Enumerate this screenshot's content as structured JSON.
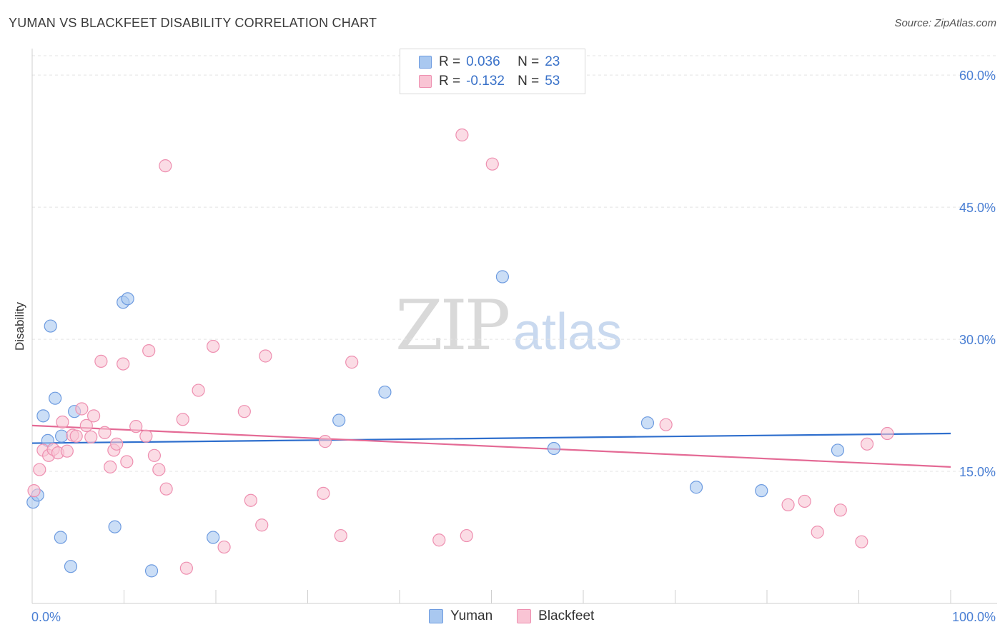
{
  "header": {
    "title": "YUMAN VS BLACKFEET DISABILITY CORRELATION CHART",
    "source": "Source: ZipAtlas.com"
  },
  "watermark": {
    "zip": "ZIP",
    "atlas": "atlas"
  },
  "legend": {
    "rows": [
      {
        "r_label": "R =",
        "r_value": "0.036",
        "n_label": "N =",
        "n_value": "23",
        "color": "#a9c8f0",
        "border": "#6d9be0"
      },
      {
        "r_label": "R =",
        "r_value": "-0.132",
        "n_label": "N =",
        "n_value": "53",
        "color": "#f9c4d4",
        "border": "#ee8fb0"
      }
    ]
  },
  "bottom_legend": {
    "items": [
      {
        "label": "Yuman",
        "color": "#a9c8f0",
        "border": "#6d9be0"
      },
      {
        "label": "Blackfeet",
        "color": "#f9c4d4",
        "border": "#ee8fb0"
      }
    ]
  },
  "chart_data": {
    "type": "scatter",
    "title": "YUMAN VS BLACKFEET DISABILITY CORRELATION CHART",
    "xlabel": "",
    "ylabel": "Disability",
    "xlim": [
      0,
      100
    ],
    "ylim": [
      0,
      60
    ],
    "x_tick_labels": [
      "0.0%",
      "100.0%"
    ],
    "y_ticks": [
      15,
      30,
      45,
      60
    ],
    "y_tick_labels": [
      "15.0%",
      "30.0%",
      "45.0%",
      "60.0%"
    ],
    "grid": true,
    "legend_position": "top-center",
    "series": [
      {
        "name": "Yuman",
        "color": "#a9c8f0",
        "stroke": "#6d9be0",
        "line_color": "#2f6fcd",
        "trend": {
          "x": [
            0,
            100
          ],
          "y": [
            18.2,
            19.3
          ]
        },
        "points": [
          {
            "x": 0.1,
            "y": 11.5
          },
          {
            "x": 0.6,
            "y": 12.3
          },
          {
            "x": 1.2,
            "y": 21.3
          },
          {
            "x": 1.7,
            "y": 18.5
          },
          {
            "x": 2.0,
            "y": 31.5
          },
          {
            "x": 2.5,
            "y": 23.3
          },
          {
            "x": 3.1,
            "y": 7.5
          },
          {
            "x": 3.2,
            "y": 19.0
          },
          {
            "x": 4.2,
            "y": 4.2
          },
          {
            "x": 4.6,
            "y": 21.8
          },
          {
            "x": 9.0,
            "y": 8.7
          },
          {
            "x": 9.9,
            "y": 34.2
          },
          {
            "x": 10.4,
            "y": 34.6
          },
          {
            "x": 13.0,
            "y": 3.7
          },
          {
            "x": 19.7,
            "y": 7.5
          },
          {
            "x": 33.4,
            "y": 20.8
          },
          {
            "x": 38.4,
            "y": 24.0
          },
          {
            "x": 51.2,
            "y": 37.1
          },
          {
            "x": 56.8,
            "y": 17.6
          },
          {
            "x": 67.0,
            "y": 20.5
          },
          {
            "x": 72.3,
            "y": 13.2
          },
          {
            "x": 79.4,
            "y": 12.8
          },
          {
            "x": 87.7,
            "y": 17.4
          }
        ]
      },
      {
        "name": "Blackfeet",
        "color": "#f9c4d4",
        "stroke": "#ee8fb0",
        "line_color": "#e46a95",
        "trend": {
          "x": [
            0,
            100
          ],
          "y": [
            20.2,
            15.5
          ]
        },
        "points": [
          {
            "x": 0.2,
            "y": 12.8
          },
          {
            "x": 0.8,
            "y": 15.2
          },
          {
            "x": 1.2,
            "y": 17.4
          },
          {
            "x": 1.8,
            "y": 16.8
          },
          {
            "x": 2.3,
            "y": 17.5
          },
          {
            "x": 2.8,
            "y": 17.1
          },
          {
            "x": 3.3,
            "y": 20.6
          },
          {
            "x": 3.8,
            "y": 17.3
          },
          {
            "x": 4.4,
            "y": 19.1
          },
          {
            "x": 4.8,
            "y": 19.0
          },
          {
            "x": 5.4,
            "y": 22.1
          },
          {
            "x": 5.9,
            "y": 20.2
          },
          {
            "x": 6.4,
            "y": 18.9
          },
          {
            "x": 6.7,
            "y": 21.3
          },
          {
            "x": 7.5,
            "y": 27.5
          },
          {
            "x": 7.9,
            "y": 19.4
          },
          {
            "x": 8.5,
            "y": 15.5
          },
          {
            "x": 8.9,
            "y": 17.4
          },
          {
            "x": 9.2,
            "y": 18.1
          },
          {
            "x": 9.9,
            "y": 27.2
          },
          {
            "x": 10.3,
            "y": 16.1
          },
          {
            "x": 11.3,
            "y": 20.1
          },
          {
            "x": 12.4,
            "y": 19.0
          },
          {
            "x": 12.7,
            "y": 28.7
          },
          {
            "x": 13.3,
            "y": 16.8
          },
          {
            "x": 13.8,
            "y": 15.2
          },
          {
            "x": 14.5,
            "y": 49.7
          },
          {
            "x": 14.6,
            "y": 13.0
          },
          {
            "x": 16.4,
            "y": 20.9
          },
          {
            "x": 16.8,
            "y": 4.0
          },
          {
            "x": 18.1,
            "y": 24.2
          },
          {
            "x": 19.7,
            "y": 29.2
          },
          {
            "x": 20.9,
            "y": 6.4
          },
          {
            "x": 23.1,
            "y": 21.8
          },
          {
            "x": 23.8,
            "y": 11.7
          },
          {
            "x": 25.0,
            "y": 8.9
          },
          {
            "x": 25.4,
            "y": 28.1
          },
          {
            "x": 31.7,
            "y": 12.5
          },
          {
            "x": 31.9,
            "y": 18.4
          },
          {
            "x": 33.6,
            "y": 7.7
          },
          {
            "x": 34.8,
            "y": 27.4
          },
          {
            "x": 44.3,
            "y": 7.2
          },
          {
            "x": 46.8,
            "y": 53.2
          },
          {
            "x": 47.3,
            "y": 7.7
          },
          {
            "x": 50.1,
            "y": 49.9
          },
          {
            "x": 69.0,
            "y": 20.3
          },
          {
            "x": 82.3,
            "y": 11.2
          },
          {
            "x": 84.1,
            "y": 11.6
          },
          {
            "x": 85.5,
            "y": 8.1
          },
          {
            "x": 88.0,
            "y": 10.6
          },
          {
            "x": 90.3,
            "y": 7.0
          },
          {
            "x": 90.9,
            "y": 18.1
          },
          {
            "x": 93.1,
            "y": 19.3
          }
        ]
      }
    ]
  }
}
